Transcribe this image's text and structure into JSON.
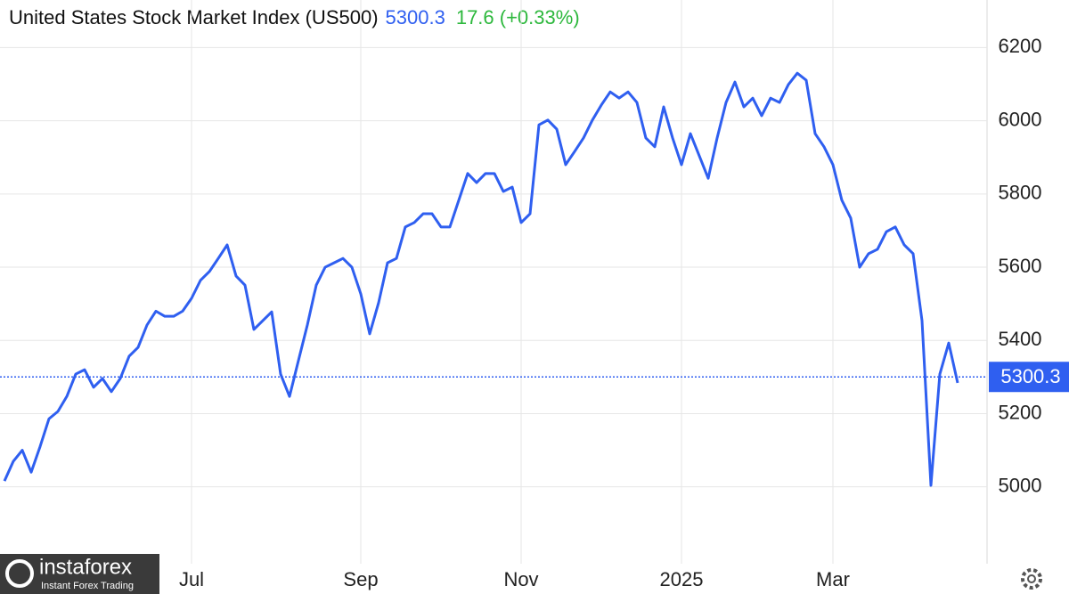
{
  "chart_data": {
    "type": "line",
    "title": "United States Stock Market Index (US500)",
    "last_value": 5300.3,
    "change_label": "17.6 (+0.33%)",
    "watermark": {
      "brand": "instaforex",
      "tagline": "Instant Forex Trading"
    },
    "categories": [
      null,
      null,
      null,
      null,
      null,
      null,
      null,
      null,
      null,
      null,
      null,
      null,
      null,
      null,
      null,
      null,
      null,
      null,
      null,
      null,
      null,
      "Jul",
      null,
      null,
      null,
      null,
      null,
      null,
      null,
      null,
      null,
      null,
      null,
      null,
      null,
      null,
      null,
      null,
      null,
      null,
      "Sep",
      null,
      null,
      null,
      null,
      null,
      null,
      null,
      null,
      null,
      null,
      null,
      null,
      null,
      null,
      null,
      null,
      null,
      "Nov",
      null,
      null,
      null,
      null,
      null,
      null,
      null,
      null,
      null,
      null,
      null,
      null,
      null,
      null,
      null,
      null,
      null,
      "2025",
      null,
      null,
      null,
      null,
      null,
      null,
      null,
      null,
      null,
      null,
      null,
      null,
      null,
      null,
      null,
      null,
      "Mar",
      null,
      null,
      null,
      null,
      null,
      null,
      null,
      null,
      null,
      null,
      null,
      null,
      null,
      null
    ],
    "series": [
      {
        "name": "US500",
        "color": "#2f5ff0",
        "values": [
          5016,
          5070,
          5100,
          5040,
          5110,
          5186,
          5206,
          5247,
          5308,
          5320,
          5272,
          5296,
          5260,
          5296,
          5357,
          5381,
          5442,
          5480,
          5466,
          5466,
          5480,
          5515,
          5564,
          5588,
          5624,
          5661,
          5576,
          5551,
          5430,
          5454,
          5478,
          5308,
          5247,
          5345,
          5442,
          5551,
          5600,
          5612,
          5624,
          5600,
          5527,
          5418,
          5503,
          5612,
          5624,
          5710,
          5722,
          5746,
          5746,
          5710,
          5710,
          5783,
          5856,
          5831,
          5856,
          5856,
          5807,
          5819,
          5722,
          5746,
          5989,
          6002,
          5977,
          5880,
          5916,
          5953,
          6002,
          6043,
          6079,
          6062,
          6079,
          6050,
          5953,
          5929,
          6038,
          5953,
          5880,
          5965,
          5904,
          5843,
          5953,
          6050,
          6106,
          6038,
          6062,
          6014,
          6062,
          6050,
          6099,
          6130,
          6111,
          5965,
          5929,
          5880,
          5783,
          5734,
          5600,
          5637,
          5649,
          5697,
          5710,
          5661,
          5637,
          5454,
          5004,
          5308,
          5393,
          5284
        ]
      }
    ],
    "ylim": [
      4790,
      6330
    ],
    "yticks": [
      5000,
      5200,
      5400,
      5600,
      5800,
      6000,
      6200
    ],
    "grid": true
  }
}
